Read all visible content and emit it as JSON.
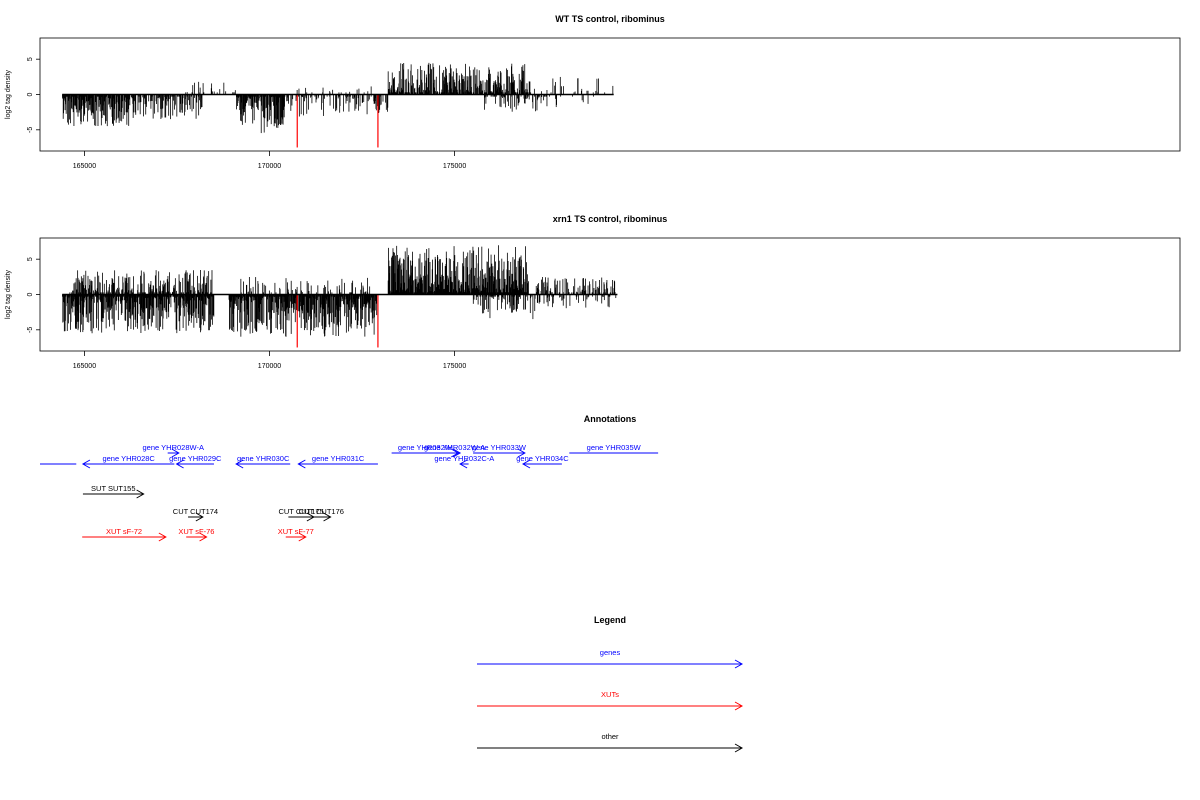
{
  "chart_data": [
    {
      "type": "bar",
      "title": "WT TS control, ribominus",
      "ylabel": "log2 tag density",
      "xlim": [
        163800,
        194600
      ],
      "ylim": [
        -8,
        8
      ],
      "xticks": [
        "165000",
        "170000",
        "175000"
      ],
      "yticks": [
        "-5",
        "0",
        "5"
      ],
      "highlight_color": "#ff0000",
      "highlights": [
        {
          "x": 170750,
          "value": -7.5
        },
        {
          "x": 172930,
          "value": -7.5
        }
      ],
      "segments": [
        {
          "start": 164400,
          "end": 166200,
          "sign": -1,
          "max": 4.5,
          "density": 0.8,
          "seed": 11
        },
        {
          "start": 166200,
          "end": 168200,
          "sign": -1,
          "max": 3.5,
          "density": 0.5,
          "seed": 12
        },
        {
          "start": 167700,
          "end": 169100,
          "sign": 1,
          "max": 2.0,
          "density": 0.15,
          "seed": 13
        },
        {
          "start": 169100,
          "end": 170400,
          "sign": -1,
          "max": 5.5,
          "density": 0.85,
          "seed": 14
        },
        {
          "start": 170400,
          "end": 173200,
          "sign": -1,
          "max": 3.5,
          "density": 0.35,
          "seed": 15
        },
        {
          "start": 170700,
          "end": 172800,
          "sign": 1,
          "max": 1.5,
          "density": 0.1,
          "seed": 16
        },
        {
          "start": 173200,
          "end": 177000,
          "sign": 1,
          "max": 4.5,
          "density": 0.75,
          "seed": 17
        },
        {
          "start": 175800,
          "end": 177500,
          "sign": -1,
          "max": 2.5,
          "density": 0.3,
          "seed": 18
        },
        {
          "start": 177000,
          "end": 179300,
          "sign": 1,
          "max": 2.5,
          "density": 0.12,
          "seed": 19
        },
        {
          "start": 177000,
          "end": 178800,
          "sign": -1,
          "max": 2.0,
          "density": 0.1,
          "seed": 20
        }
      ]
    },
    {
      "type": "bar",
      "title": "xrn1 TS control, ribominus",
      "ylabel": "log2 tag density",
      "xlim": [
        163800,
        194600
      ],
      "ylim": [
        -8,
        8
      ],
      "xticks": [
        "165000",
        "170000",
        "175000"
      ],
      "yticks": [
        "-5",
        "0",
        "5"
      ],
      "highlight_color": "#ff0000",
      "highlights": [
        {
          "x": 170750,
          "value": -7.5
        },
        {
          "x": 172930,
          "value": -7.5
        }
      ],
      "segments": [
        {
          "start": 164400,
          "end": 168500,
          "sign": -1,
          "max": 5.5,
          "density": 0.9,
          "seed": 31
        },
        {
          "start": 164600,
          "end": 168500,
          "sign": 1,
          "max": 3.5,
          "density": 0.55,
          "seed": 32
        },
        {
          "start": 168900,
          "end": 172900,
          "sign": -1,
          "max": 6.0,
          "density": 0.9,
          "seed": 33
        },
        {
          "start": 169200,
          "end": 172800,
          "sign": 1,
          "max": 2.5,
          "density": 0.2,
          "seed": 34
        },
        {
          "start": 173200,
          "end": 177000,
          "sign": 1,
          "max": 7.0,
          "density": 0.95,
          "seed": 35
        },
        {
          "start": 175500,
          "end": 177200,
          "sign": -1,
          "max": 3.5,
          "density": 0.35,
          "seed": 36
        },
        {
          "start": 177200,
          "end": 179400,
          "sign": 1,
          "max": 2.5,
          "density": 0.35,
          "seed": 37
        },
        {
          "start": 177200,
          "end": 179400,
          "sign": -1,
          "max": 2.0,
          "density": 0.2,
          "seed": 38
        }
      ]
    }
  ],
  "annotations": {
    "title": "Annotations",
    "colors": {
      "genes": "#0000ff",
      "xuts": "#ff0000",
      "other": "#000000"
    },
    "items": [
      {
        "label": "",
        "kind": "genes",
        "start": 163800,
        "end": 164780,
        "dir": "none",
        "row": 1
      },
      {
        "label": "gene YHR028C",
        "kind": "genes",
        "start": 164960,
        "end": 167430,
        "dir": "left",
        "row": 1
      },
      {
        "label": "gene YHR028W-A",
        "kind": "genes",
        "start": 167250,
        "end": 167550,
        "dir": "right",
        "row": 0
      },
      {
        "label": "gene YHR029C",
        "kind": "genes",
        "start": 167490,
        "end": 168500,
        "dir": "left",
        "row": 1
      },
      {
        "label": "gene YHR030C",
        "kind": "genes",
        "start": 169100,
        "end": 170560,
        "dir": "left",
        "row": 1
      },
      {
        "label": "gene YHR031C",
        "kind": "genes",
        "start": 170780,
        "end": 172930,
        "dir": "left",
        "row": 1
      },
      {
        "label": "gene YHR032W",
        "kind": "genes",
        "start": 173300,
        "end": 175100,
        "dir": "right",
        "row": 0
      },
      {
        "label": "gene YHR032W-A",
        "kind": "genes",
        "start": 174850,
        "end": 175150,
        "dir": "right",
        "row": 0
      },
      {
        "label": "gene YHR032C-A",
        "kind": "genes",
        "start": 175150,
        "end": 175380,
        "dir": "left",
        "row": 1
      },
      {
        "label": "gene YHR033W",
        "kind": "genes",
        "start": 175500,
        "end": 176900,
        "dir": "right",
        "row": 0
      },
      {
        "label": "gene YHR034C",
        "kind": "genes",
        "start": 176850,
        "end": 177900,
        "dir": "left",
        "row": 1
      },
      {
        "label": "gene YHR035W",
        "kind": "genes",
        "start": 178100,
        "end": 180500,
        "dir": "none",
        "row": 0
      },
      {
        "label": "SUT SUT155",
        "kind": "other",
        "start": 164960,
        "end": 166600,
        "dir": "right",
        "row": 2
      },
      {
        "label": "CUT CUT174",
        "kind": "other",
        "start": 167800,
        "end": 168200,
        "dir": "right",
        "row": 3
      },
      {
        "label": "CUT CUT175",
        "kind": "other",
        "start": 170510,
        "end": 171200,
        "dir": "right",
        "row": 3
      },
      {
        "label": "CUT CUT176",
        "kind": "other",
        "start": 171150,
        "end": 171650,
        "dir": "right",
        "row": 3
      },
      {
        "label": "XUT sF-72",
        "kind": "xuts",
        "start": 164940,
        "end": 167200,
        "dir": "right",
        "row": 4
      },
      {
        "label": "XUT sF-76",
        "kind": "xuts",
        "start": 167750,
        "end": 168300,
        "dir": "right",
        "row": 4
      },
      {
        "label": "XUT sF-77",
        "kind": "xuts",
        "start": 170440,
        "end": 170980,
        "dir": "right",
        "row": 4
      }
    ]
  },
  "legend": {
    "title": "Legend",
    "entries": [
      {
        "label": "genes",
        "kind": "genes"
      },
      {
        "label": "XUTs",
        "kind": "xuts"
      },
      {
        "label": "other",
        "kind": "other"
      }
    ]
  }
}
